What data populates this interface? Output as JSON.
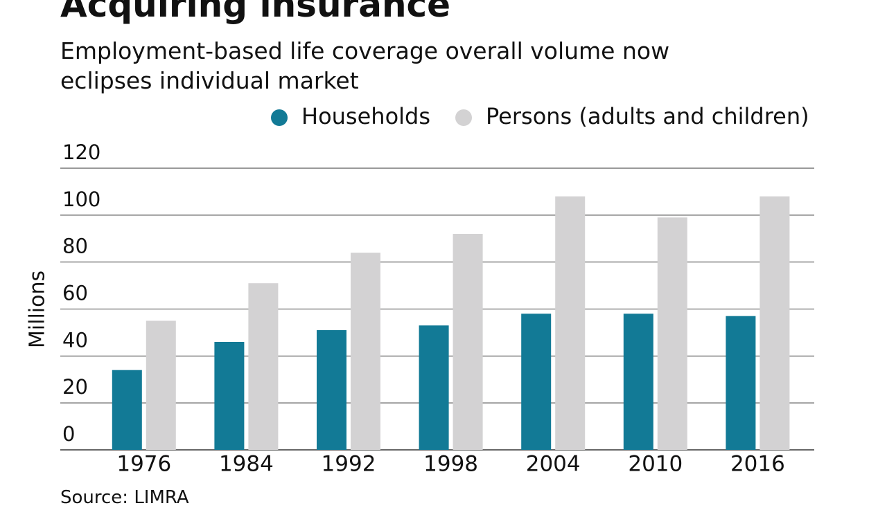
{
  "chart_data": {
    "type": "bar",
    "title": "Acquiring insurance",
    "subtitle": "Employment-based life coverage overall volume now eclipses individual market",
    "y_label": "Millions",
    "source": "Source: LIMRA",
    "categories": [
      "1976",
      "1984",
      "1992",
      "1998",
      "2004",
      "2010",
      "2016"
    ],
    "series": [
      {
        "name": "Households",
        "color": "#127a96",
        "values": [
          34,
          46,
          51,
          53,
          58,
          58,
          57
        ]
      },
      {
        "name": "Persons (adults and children)",
        "color": "#d3d2d3",
        "values": [
          55,
          71,
          84,
          92,
          108,
          99,
          108
        ]
      }
    ],
    "ylim": [
      0,
      120
    ],
    "yticks": [
      0,
      20,
      40,
      60,
      80,
      100,
      120
    ],
    "grid": true,
    "legend": "top"
  }
}
